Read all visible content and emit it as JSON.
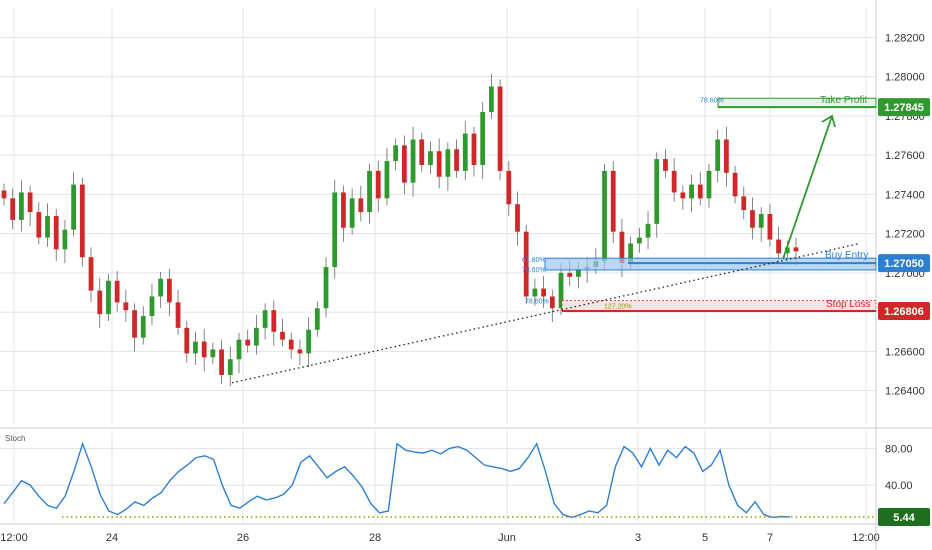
{
  "chart_data": [
    {
      "type": "candlestick",
      "panel": "price",
      "x_ticks": [
        "12:00",
        "24",
        "26",
        "28",
        "Jun",
        "3",
        "5",
        "7",
        "12:00"
      ],
      "y_ticks": [
        "1.28200",
        "1.28000",
        "1.27800",
        "1.27600",
        "1.27400",
        "1.27200",
        "1.27000",
        "1.26800",
        "1.26600",
        "1.26400"
      ],
      "y_tick_values": [
        1.282,
        1.28,
        1.278,
        1.276,
        1.274,
        1.272,
        1.27,
        1.268,
        1.266,
        1.264
      ],
      "ylim": [
        1.2623,
        1.2835
      ],
      "series_close_path": [
        1.2738,
        1.2727,
        1.2741,
        1.2731,
        1.2718,
        1.2729,
        1.2712,
        1.2722,
        1.2745,
        1.2708,
        1.2691,
        1.2679,
        1.2696,
        1.2685,
        1.2681,
        1.2667,
        1.2678,
        1.2688,
        1.2697,
        1.2685,
        1.2672,
        1.2659,
        1.2665,
        1.2657,
        1.2661,
        1.2648,
        1.2656,
        1.2666,
        1.2663,
        1.2672,
        1.2681,
        1.267,
        1.2666,
        1.2661,
        1.2659,
        1.2671,
        1.2682,
        1.2703,
        1.2741,
        1.2723,
        1.2738,
        1.2731,
        1.2752,
        1.2738,
        1.2757,
        1.2765,
        1.2746,
        1.2768,
        1.2755,
        1.2762,
        1.2749,
        1.2763,
        1.2752,
        1.2771,
        1.2755,
        1.2782,
        1.2795,
        1.2752,
        1.2735,
        1.2721,
        1.2688,
        1.2692,
        1.2688,
        1.2682,
        1.27,
        1.2698,
        1.2702,
        1.2703,
        1.2706,
        1.2752,
        1.2721,
        1.2705,
        1.2715,
        1.2718,
        1.2725,
        1.2758,
        1.2752,
        1.2741,
        1.2738,
        1.2745,
        1.2738,
        1.2752,
        1.2768,
        1.2751,
        1.2739,
        1.2732,
        1.2723,
        1.273,
        1.2717,
        1.271,
        1.2713,
        1.2711
      ],
      "annotations": [
        {
          "label": "Take Profit",
          "value": 1.27845,
          "price_label": "1.27845",
          "fib": "78.60%"
        },
        {
          "label": "Buy Entry",
          "value": 1.2705,
          "price_label": "1.27050",
          "fib": [
            "61.80%",
            "78.60%"
          ]
        },
        {
          "label": "Stop Loss",
          "value": 1.26806,
          "price_label": "1.26806",
          "fib": [
            "78.60%",
            "127.20%"
          ]
        }
      ],
      "trendline": {
        "style": "dotted",
        "from_value": 1.2644,
        "to_value": 1.2715
      },
      "arrow": {
        "from_value": 1.2707,
        "to_value": 1.2782,
        "color": "#2e9a2e"
      }
    },
    {
      "type": "line",
      "panel": "stochastic",
      "name": "Stoch",
      "ylim": [
        0,
        100
      ],
      "y_ticks": [
        "80.00",
        "40.00"
      ],
      "y_tick_values": [
        80,
        40
      ],
      "last_value_label": "5.44",
      "last_value": 5.44,
      "values": [
        20,
        32,
        45,
        40,
        28,
        18,
        15,
        28,
        55,
        85,
        60,
        30,
        12,
        8,
        14,
        22,
        18,
        26,
        32,
        45,
        55,
        62,
        70,
        72,
        68,
        40,
        18,
        15,
        22,
        28,
        24,
        26,
        30,
        40,
        65,
        72,
        60,
        48,
        55,
        60,
        50,
        38,
        20,
        10,
        12,
        85,
        78,
        76,
        75,
        78,
        74,
        80,
        82,
        78,
        70,
        62,
        60,
        58,
        55,
        58,
        70,
        85,
        55,
        20,
        8,
        5,
        8,
        12,
        10,
        18,
        60,
        82,
        75,
        60,
        80,
        62,
        78,
        70,
        82,
        75,
        55,
        62,
        78,
        40,
        18,
        10,
        22,
        8,
        5,
        6,
        5.44
      ]
    }
  ],
  "colors": {
    "up": "#2e9a2e",
    "down": "#d02828",
    "grid": "#dfe3ea",
    "axis_text": "#333333",
    "stoch_line": "#2f7fd0",
    "tp_fill": "#e6f4e6",
    "tp_stroke": "#2e9a2e",
    "entry_fill": "#9cc7ef",
    "entry_stroke": "#2f7fd0",
    "sl_fill": "#fbe3e3",
    "sl_stroke": "#d02828",
    "zero_dotted": "#9a9a00"
  }
}
